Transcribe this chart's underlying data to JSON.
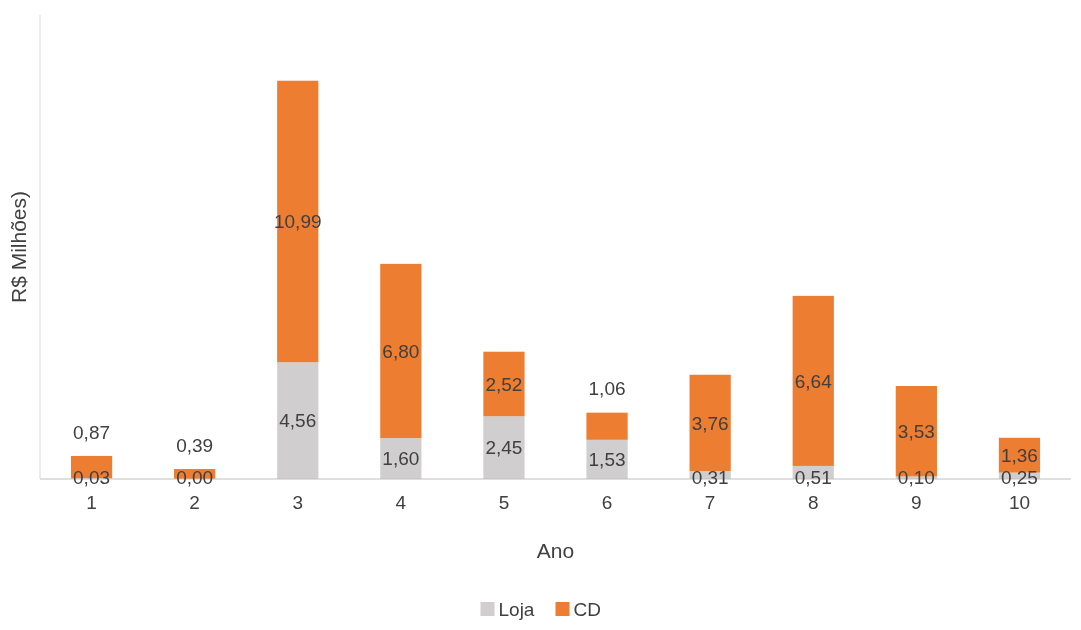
{
  "chart_data": {
    "type": "bar",
    "stacked": true,
    "xlabel": "Ano",
    "ylabel": "R$ Milhões)",
    "categories": [
      "1",
      "2",
      "3",
      "4",
      "5",
      "6",
      "7",
      "8",
      "9",
      "10"
    ],
    "series": [
      {
        "name": "Loja",
        "color": "#d0cece",
        "values": [
          0.03,
          0.0,
          4.56,
          1.6,
          2.45,
          1.53,
          0.31,
          0.51,
          0.1,
          0.25
        ],
        "value_labels": [
          "0,03",
          "0,00",
          "4,56",
          "1,60",
          "2,45",
          "1,53",
          "0,31",
          "0,51",
          "0,10",
          "0,25"
        ]
      },
      {
        "name": "CD",
        "color": "#ed7d31",
        "values": [
          0.87,
          0.39,
          10.99,
          6.8,
          2.52,
          1.06,
          3.76,
          6.64,
          3.53,
          1.36
        ],
        "value_labels": [
          "0,87",
          "0,39",
          "10,99",
          "6,80",
          "2,52",
          "1,06",
          "3,76",
          "6,64",
          "3,53",
          "1,36"
        ]
      }
    ],
    "legend": "bottom"
  }
}
